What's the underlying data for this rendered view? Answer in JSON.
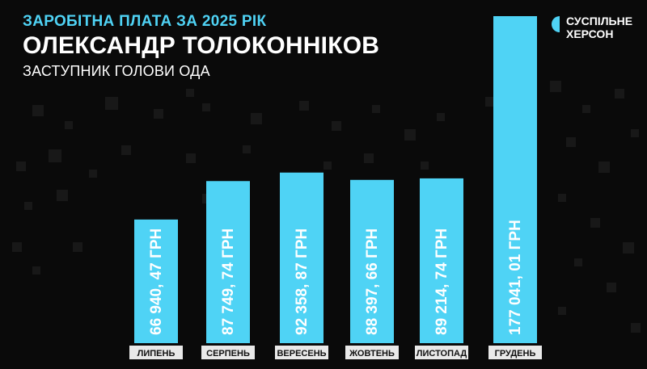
{
  "header": {
    "title": "ЗАРОБІТНА ПЛАТА ЗА 2025 РІК",
    "name": "ОЛЕКСАНДР ТОЛОКОННІКОВ",
    "position": "ЗАСТУПНИК ГОЛОВИ ОДА"
  },
  "logo": {
    "icon": "suspilne-logo-icon",
    "line1": "СУСПІЛЬНЕ",
    "line2": "ХЕРСОН"
  },
  "colors": {
    "background": "#0a0a0a",
    "bar": "#4fd3f5",
    "title": "#4fd3f5",
    "bar_label": "#ffffff",
    "category_label_bg": "#e9e9e9",
    "category_label_text": "#111111"
  },
  "chart_data": {
    "type": "bar",
    "categories": [
      "ЛИПЕНЬ",
      "СЕРПЕНЬ",
      "ВЕРЕСЕНЬ",
      "ЖОВТЕНЬ",
      "ЛИСТОПАД",
      "ГРУДЕНЬ"
    ],
    "values": [
      66940.47,
      87749.74,
      92358.87,
      88397.66,
      89214.74,
      177041.01
    ],
    "value_labels": [
      "66 940, 47 ГРН",
      "87 749, 74 ГРН",
      "92 358, 87 ГРН",
      "88 397, 66 ГРН",
      "89 214, 74 ГРН",
      "177 041, 01 ГРН"
    ],
    "title": "ЗАРОБІТНА ПЛАТА ЗА 2025 РІК",
    "xlabel": "",
    "ylabel": "",
    "grid": false,
    "legend": "none"
  }
}
